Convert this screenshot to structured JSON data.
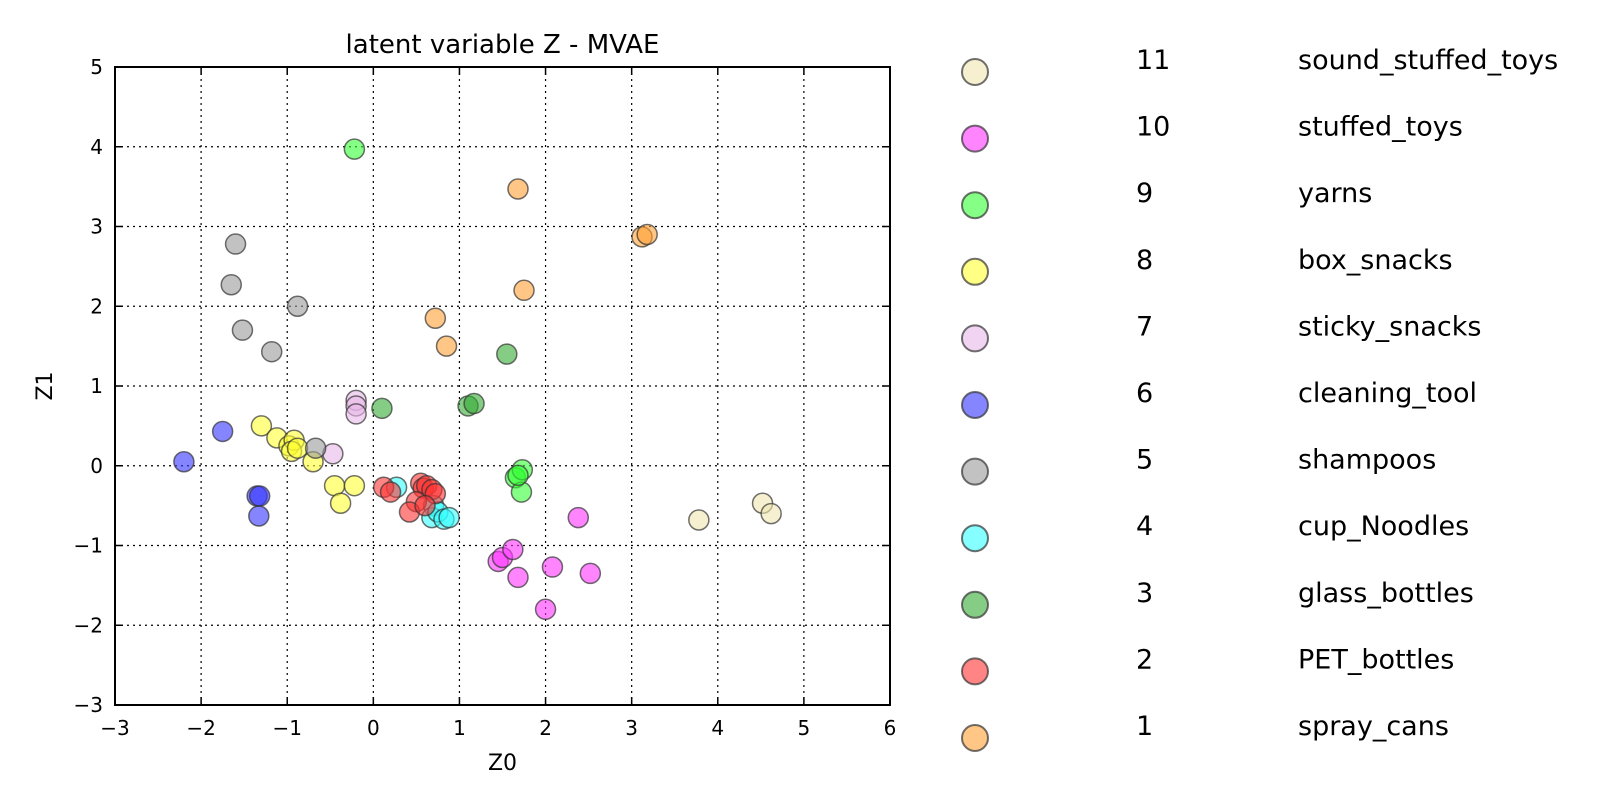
{
  "chart_data": {
    "type": "scatter",
    "title": "latent variable Z - MVAE",
    "xlabel": "Z0",
    "ylabel": "Z1",
    "xlim": [
      -3,
      6
    ],
    "ylim": [
      -3,
      5
    ],
    "xticks": [
      "−3",
      "−2",
      "−1",
      "0",
      "1",
      "2",
      "3",
      "4",
      "5",
      "6"
    ],
    "yticks": [
      "−3",
      "−2",
      "−1",
      "0",
      "1",
      "2",
      "3",
      "4",
      "5"
    ],
    "grid": true,
    "legend_position": "right",
    "series": [
      {
        "id": "11",
        "name": "sound_stuffed_toys",
        "color": "#f0e6b0",
        "points": [
          [
            3.78,
            -0.68
          ],
          [
            4.52,
            -0.47
          ],
          [
            4.62,
            -0.6
          ]
        ]
      },
      {
        "id": "10",
        "name": "stuffed_toys",
        "color": "#ff33ff",
        "points": [
          [
            1.45,
            -1.2
          ],
          [
            1.5,
            -1.15
          ],
          [
            1.62,
            -1.05
          ],
          [
            1.68,
            -1.4
          ],
          [
            2.08,
            -1.27
          ],
          [
            2.52,
            -1.35
          ],
          [
            2.38,
            -0.65
          ],
          [
            2.0,
            -1.8
          ]
        ]
      },
      {
        "id": "9",
        "name": "yarns",
        "color": "#33ff33",
        "points": [
          [
            -0.22,
            3.97
          ],
          [
            1.65,
            -0.15
          ],
          [
            1.73,
            -0.05
          ],
          [
            1.72,
            -0.33
          ],
          [
            1.68,
            -0.12
          ]
        ]
      },
      {
        "id": "8",
        "name": "box_snacks",
        "color": "#ffff33",
        "points": [
          [
            -1.3,
            0.5
          ],
          [
            -1.12,
            0.35
          ],
          [
            -0.98,
            0.25
          ],
          [
            -0.92,
            0.32
          ],
          [
            -0.95,
            0.18
          ],
          [
            -0.88,
            0.22
          ],
          [
            -0.7,
            0.05
          ],
          [
            -0.45,
            -0.25
          ],
          [
            -0.22,
            -0.25
          ],
          [
            -0.38,
            -0.47
          ]
        ]
      },
      {
        "id": "7",
        "name": "sticky_snacks",
        "color": "#e8b8e8",
        "points": [
          [
            -0.2,
            0.82
          ],
          [
            -0.2,
            0.75
          ],
          [
            -0.2,
            0.65
          ],
          [
            -0.47,
            0.15
          ]
        ]
      },
      {
        "id": "6",
        "name": "cleaning_tool",
        "color": "#3333ff",
        "points": [
          [
            -2.2,
            0.05
          ],
          [
            -1.75,
            0.43
          ],
          [
            -1.35,
            -0.38
          ],
          [
            -1.32,
            -0.38
          ],
          [
            -1.33,
            -0.63
          ]
        ]
      },
      {
        "id": "5",
        "name": "shampoos",
        "color": "#999999",
        "points": [
          [
            -1.6,
            2.78
          ],
          [
            -1.65,
            2.27
          ],
          [
            -1.52,
            1.7
          ],
          [
            -0.88,
            2.0
          ],
          [
            -1.18,
            1.43
          ],
          [
            -0.67,
            0.22
          ]
        ]
      },
      {
        "id": "4",
        "name": "cup_Noodles",
        "color": "#33ffff",
        "points": [
          [
            0.27,
            -0.27
          ],
          [
            0.7,
            -0.5
          ],
          [
            0.68,
            -0.65
          ],
          [
            0.75,
            -0.58
          ],
          [
            0.82,
            -0.67
          ],
          [
            0.88,
            -0.65
          ]
        ]
      },
      {
        "id": "3",
        "name": "glass_bottles",
        "color": "#33aa33",
        "points": [
          [
            0.1,
            0.72
          ],
          [
            1.1,
            0.75
          ],
          [
            1.17,
            0.78
          ],
          [
            1.55,
            1.4
          ]
        ]
      },
      {
        "id": "2",
        "name": "PET_bottles",
        "color": "#ff3333",
        "points": [
          [
            0.12,
            -0.27
          ],
          [
            0.2,
            -0.33
          ],
          [
            0.55,
            -0.22
          ],
          [
            0.58,
            -0.28
          ],
          [
            0.62,
            -0.25
          ],
          [
            0.68,
            -0.3
          ],
          [
            0.72,
            -0.35
          ],
          [
            0.5,
            -0.45
          ],
          [
            0.42,
            -0.58
          ],
          [
            0.6,
            -0.5
          ]
        ]
      },
      {
        "id": "1",
        "name": "spray_cans",
        "color": "#ffa033",
        "points": [
          [
            1.68,
            3.47
          ],
          [
            1.75,
            2.2
          ],
          [
            0.72,
            1.85
          ],
          [
            0.85,
            1.5
          ],
          [
            3.12,
            2.87
          ],
          [
            3.18,
            2.9
          ]
        ]
      }
    ]
  }
}
